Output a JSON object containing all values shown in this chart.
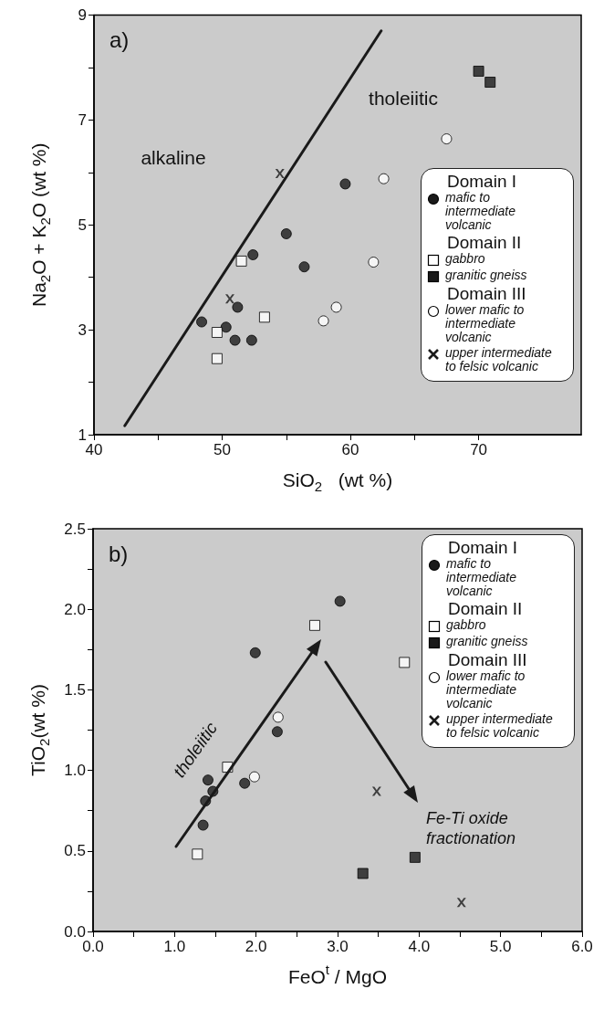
{
  "chart_data": [
    {
      "type": "scatter",
      "title": "a)",
      "xlabel": "SiO$_{2}$   (wt %)",
      "ylabel": "Na$_{2}$O + K$_{2}$O (wt %)",
      "xlim": [
        40,
        78
      ],
      "xticks": [
        40,
        50,
        60,
        70
      ],
      "ylim": [
        1,
        9
      ],
      "yticks": [
        1,
        3,
        5,
        7,
        9
      ],
      "legend": "bottom right",
      "annotations": [
        "Domain I",
        "Domain II",
        "Domain III",
        "alkaline",
        "tholeiitic"
      ],
      "series": [
        {
          "name": "mafic to intermediate volcanic",
          "marker": "circle",
          "color": "#1a1a1a",
          "x": [
            48.4,
            50.3,
            51.0,
            52.3,
            51.2,
            52.4,
            55.0,
            56.4,
            59.6
          ],
          "values": [
            3.15,
            3.05,
            2.8,
            2.8,
            3.43,
            4.43,
            4.83,
            4.2,
            5.78
          ]
        },
        {
          "name": "gabbro",
          "marker": "square",
          "color": "#ffffff",
          "x": [
            51.5,
            49.6,
            49.6,
            53.3
          ],
          "values": [
            4.31,
            2.95,
            2.45,
            3.24
          ]
        },
        {
          "name": "granitic gneiss",
          "marker": "square",
          "color": "#1a1a1a",
          "x": [
            70.0,
            70.9
          ],
          "values": [
            7.93,
            7.72
          ]
        },
        {
          "name": "lower mafic to intermediate volcanic",
          "marker": "circle",
          "color": "#ffffff",
          "x": [
            62.6,
            61.8,
            58.9,
            57.9,
            67.5
          ],
          "values": [
            5.88,
            4.29,
            3.43,
            3.17,
            6.64
          ]
        },
        {
          "name": "upper intermediate to felsic volcanic",
          "marker": "cross",
          "color": "#1a1a1a",
          "x": [
            54.5,
            50.6
          ],
          "values": [
            5.98,
            3.59
          ]
        },
        {
          "type": "line",
          "marker": "none",
          "line_style": "solid",
          "color": "#1a1a1a",
          "x": [
            42.4,
            62.4
          ],
          "values": [
            1.17,
            8.7
          ]
        }
      ]
    },
    {
      "type": "scatter",
      "title": "b)",
      "xlabel": "FeO$^{t}$ / MgO",
      "ylabel": "TiO$_{2}$(wt %)",
      "xlim": [
        0,
        6
      ],
      "xticks": [
        {
          "value": 0,
          "label": "0.0"
        },
        {
          "value": 1,
          "label": "1.0"
        },
        {
          "value": 2,
          "label": "2.0"
        },
        {
          "value": 3,
          "label": "3.0"
        },
        {
          "value": 4,
          "label": "4.0"
        },
        {
          "value": 5,
          "label": "5.0"
        },
        {
          "value": 6,
          "label": "6.0"
        }
      ],
      "ylim": [
        0,
        2.5
      ],
      "yticks": [
        {
          "value": 0,
          "label": "0.0"
        },
        0.5,
        {
          "value": 1,
          "label": "1.0"
        },
        1.5,
        {
          "value": 2,
          "label": "2.0"
        },
        2.5
      ],
      "legend": "top right",
      "annotations": [
        "Domain I",
        "Domain II",
        "Domain III",
        "tholeiitic",
        "Fe-Ti oxide fractionation"
      ],
      "series": [
        {
          "name": "mafic to intermediate volcanic",
          "marker": "circle",
          "color": "#1a1a1a",
          "x": [
            3.03,
            1.99,
            2.26,
            1.86,
            1.41,
            1.47,
            1.38,
            1.35
          ],
          "values": [
            2.05,
            1.73,
            1.24,
            0.92,
            0.94,
            0.87,
            0.81,
            0.66
          ]
        },
        {
          "name": "gabbro",
          "marker": "square",
          "color": "#ffffff",
          "x": [
            2.72,
            1.65,
            1.28,
            3.82
          ],
          "values": [
            1.9,
            1.02,
            0.48,
            1.67
          ]
        },
        {
          "name": "granitic gneiss",
          "marker": "square",
          "color": "#1a1a1a",
          "x": [
            3.31,
            3.95
          ],
          "values": [
            0.36,
            0.46
          ]
        },
        {
          "name": "lower mafic to intermediate volcanic",
          "marker": "circle",
          "color": "#ffffff",
          "x": [
            2.27,
            1.98
          ],
          "values": [
            1.33,
            0.96
          ]
        },
        {
          "name": "upper intermediate to felsic volcanic",
          "marker": "cross",
          "color": "#1a1a1a",
          "x": [
            3.48,
            4.52
          ],
          "values": [
            0.87,
            0.18
          ]
        }
      ]
    }
  ]
}
